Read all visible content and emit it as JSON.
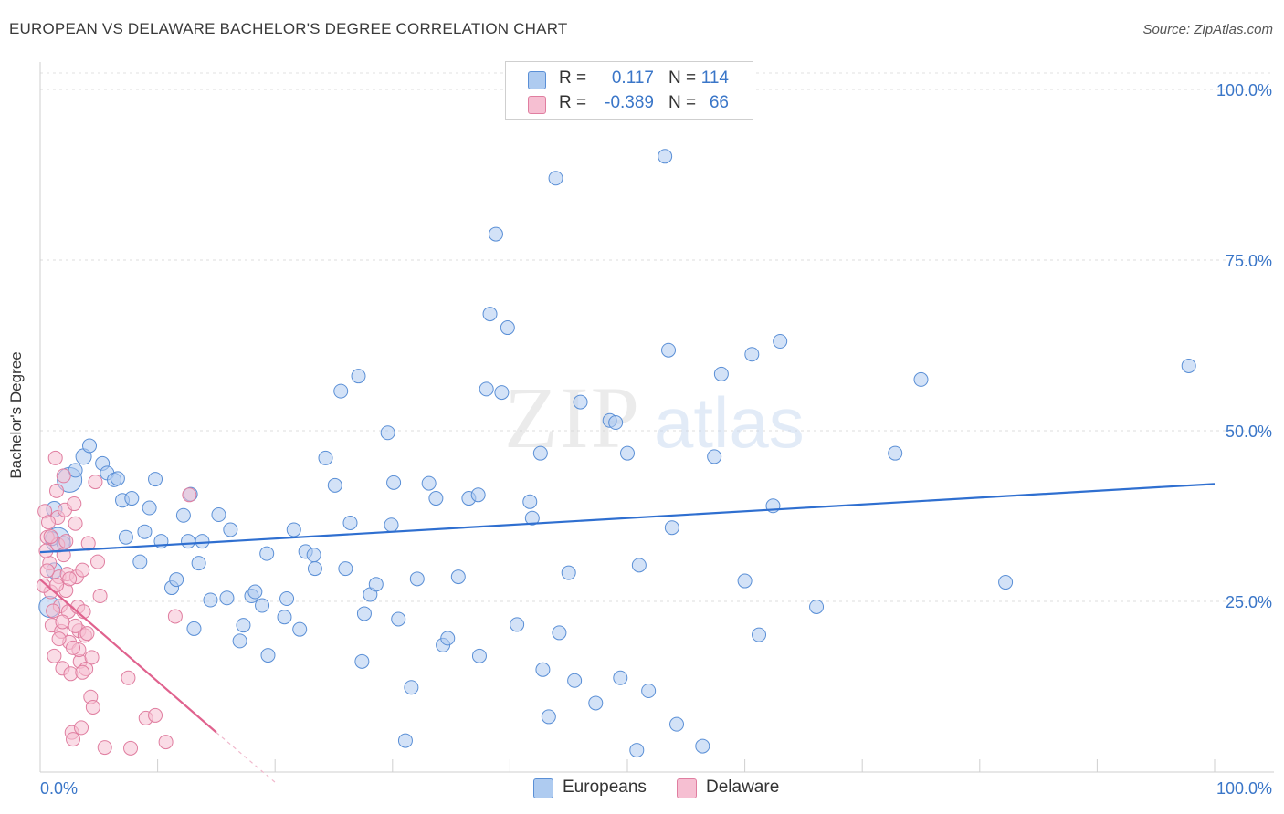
{
  "title": "EUROPEAN VS DELAWARE BACHELOR'S DEGREE CORRELATION CHART",
  "source": "Source: ZipAtlas.com",
  "watermark": {
    "zip": "ZIP",
    "atlas": "atlas"
  },
  "legend": {
    "rows": [
      {
        "r_label": "R =",
        "r_value": "0.117",
        "n_label": "N =",
        "n_value": "114",
        "color": "#aecbf0",
        "stroke": "#5a8fd6"
      },
      {
        "r_label": "R =",
        "r_value": "-0.389",
        "n_label": "N =",
        "n_value": "66",
        "color": "#f6bfd2",
        "stroke": "#e07ea0"
      }
    ]
  },
  "bottom_legend": [
    {
      "label": "Europeans",
      "color": "#aecbf0",
      "stroke": "#5a8fd6"
    },
    {
      "label": "Delaware",
      "color": "#f6bfd2",
      "stroke": "#e07ea0"
    }
  ],
  "chart_data": {
    "type": "scatter",
    "title": "EUROPEAN VS DELAWARE BACHELOR'S DEGREE CORRELATION CHART",
    "xlabel": "",
    "ylabel": "Bachelor's Degree",
    "xlim": [
      0,
      100
    ],
    "ylim": [
      0,
      100
    ],
    "x_tick_labels": [
      "0.0%",
      "100.0%"
    ],
    "y_tick_labels": [
      "25.0%",
      "50.0%",
      "75.0%",
      "100.0%"
    ],
    "y_ticks": [
      25,
      50,
      75,
      100
    ],
    "grid": true,
    "series": [
      {
        "name": "Europeans",
        "color": "#aecbf0",
        "stroke": "#5a8fd6",
        "trend": {
          "x": [
            0,
            100
          ],
          "y": [
            32.2,
            42.2
          ],
          "color": "#2f6fd0"
        },
        "points": [
          [
            0.8,
            24.2,
            22
          ],
          [
            1.2,
            38.5,
            16
          ],
          [
            1.5,
            34.0,
            26
          ],
          [
            1.2,
            29.5,
            16
          ],
          [
            2.5,
            42.8,
            26
          ],
          [
            3.7,
            46.2,
            16
          ],
          [
            4.2,
            47.8,
            14
          ],
          [
            5.3,
            45.2,
            14
          ],
          [
            5.7,
            43.8,
            14
          ],
          [
            6.3,
            42.8,
            14
          ],
          [
            3.0,
            44.2,
            14
          ],
          [
            6.6,
            43.0,
            14
          ],
          [
            7.0,
            39.8,
            14
          ],
          [
            7.8,
            40.1,
            14
          ],
          [
            9.3,
            38.7,
            14
          ],
          [
            9.8,
            42.9,
            14
          ],
          [
            7.3,
            34.4,
            14
          ],
          [
            8.9,
            35.2,
            14
          ],
          [
            10.3,
            33.8,
            14
          ],
          [
            12.2,
            37.6,
            14
          ],
          [
            12.6,
            33.8,
            14
          ],
          [
            12.8,
            40.7,
            14
          ],
          [
            13.8,
            33.8,
            14
          ],
          [
            15.2,
            37.7,
            14
          ],
          [
            16.2,
            35.5,
            14
          ],
          [
            11.2,
            27.0,
            14
          ],
          [
            11.6,
            28.2,
            14
          ],
          [
            8.5,
            30.8,
            14
          ],
          [
            13.5,
            30.6,
            14
          ],
          [
            14.5,
            25.2,
            14
          ],
          [
            15.9,
            25.5,
            14
          ],
          [
            13.1,
            21.0,
            14
          ],
          [
            17.3,
            21.5,
            14
          ],
          [
            17.0,
            19.2,
            14
          ],
          [
            18.0,
            25.8,
            14
          ],
          [
            18.3,
            26.4,
            14
          ],
          [
            18.9,
            24.4,
            14
          ],
          [
            19.3,
            32.0,
            14
          ],
          [
            19.4,
            17.1,
            14
          ],
          [
            20.8,
            22.7,
            14
          ],
          [
            21.0,
            25.4,
            14
          ],
          [
            21.6,
            35.5,
            14
          ],
          [
            22.1,
            20.9,
            14
          ],
          [
            22.6,
            32.3,
            14
          ],
          [
            23.3,
            31.8,
            14
          ],
          [
            23.4,
            29.8,
            14
          ],
          [
            24.3,
            46.0,
            14
          ],
          [
            25.1,
            42.0,
            14
          ],
          [
            25.6,
            55.8,
            14
          ],
          [
            26.4,
            36.5,
            14
          ],
          [
            26.0,
            29.8,
            14
          ],
          [
            27.1,
            58.0,
            14
          ],
          [
            27.4,
            16.2,
            14
          ],
          [
            27.6,
            23.2,
            14
          ],
          [
            28.1,
            26.0,
            14
          ],
          [
            28.6,
            27.5,
            14
          ],
          [
            29.6,
            49.7,
            14
          ],
          [
            29.9,
            36.2,
            14
          ],
          [
            30.1,
            42.4,
            14
          ],
          [
            30.5,
            22.4,
            14
          ],
          [
            31.1,
            4.6,
            14
          ],
          [
            31.6,
            12.4,
            14
          ],
          [
            32.1,
            28.3,
            14
          ],
          [
            33.1,
            42.3,
            14
          ],
          [
            33.7,
            40.1,
            14
          ],
          [
            34.3,
            18.6,
            14
          ],
          [
            34.7,
            19.6,
            14
          ],
          [
            35.6,
            28.6,
            14
          ],
          [
            36.5,
            40.1,
            14
          ],
          [
            37.3,
            40.6,
            14
          ],
          [
            37.4,
            17.0,
            14
          ],
          [
            38.0,
            56.1,
            14
          ],
          [
            38.3,
            67.1,
            14
          ],
          [
            38.8,
            78.8,
            14
          ],
          [
            39.3,
            55.6,
            14
          ],
          [
            39.8,
            65.1,
            14
          ],
          [
            40.6,
            21.6,
            14
          ],
          [
            41.7,
            39.6,
            14
          ],
          [
            41.9,
            37.2,
            14
          ],
          [
            42.6,
            46.7,
            14
          ],
          [
            42.8,
            15.0,
            14
          ],
          [
            43.3,
            8.1,
            14
          ],
          [
            43.9,
            87.0,
            14
          ],
          [
            44.2,
            20.4,
            14
          ],
          [
            45.0,
            29.2,
            14
          ],
          [
            45.5,
            13.4,
            14
          ],
          [
            46.0,
            54.2,
            14
          ],
          [
            47.3,
            10.1,
            14
          ],
          [
            48.5,
            51.5,
            14
          ],
          [
            49.0,
            51.2,
            14
          ],
          [
            49.4,
            13.8,
            14
          ],
          [
            50.0,
            46.7,
            14
          ],
          [
            50.8,
            3.2,
            14
          ],
          [
            51.0,
            30.3,
            14
          ],
          [
            51.8,
            11.9,
            14
          ],
          [
            53.2,
            90.2,
            14
          ],
          [
            53.5,
            61.8,
            14
          ],
          [
            53.8,
            35.8,
            14
          ],
          [
            54.2,
            7.0,
            14
          ],
          [
            56.4,
            3.8,
            14
          ],
          [
            57.4,
            46.2,
            14
          ],
          [
            58.0,
            58.3,
            14
          ],
          [
            60.0,
            28.0,
            14
          ],
          [
            60.6,
            61.2,
            14
          ],
          [
            61.2,
            20.1,
            14
          ],
          [
            62.4,
            39.0,
            14
          ],
          [
            63.0,
            63.1,
            14
          ],
          [
            66.1,
            24.2,
            14
          ],
          [
            72.8,
            46.7,
            14
          ],
          [
            75.0,
            57.5,
            14
          ],
          [
            82.2,
            27.8,
            14
          ],
          [
            97.8,
            59.5,
            14
          ],
          [
            1.0,
            34.2,
            14
          ],
          [
            2.0,
            33.5,
            14
          ]
        ]
      },
      {
        "name": "Delaware",
        "color": "#f6bfd2",
        "stroke": "#e07ea0",
        "trend": {
          "x": [
            0,
            15
          ],
          "y": [
            28.2,
            5.8
          ],
          "dash_x_end": 20,
          "dash_y_end": -1.5,
          "color": "#e0628e"
        },
        "points": [
          [
            0.4,
            38.2,
            14
          ],
          [
            0.6,
            34.4,
            14
          ],
          [
            0.8,
            30.6,
            14
          ],
          [
            0.9,
            26.4,
            14
          ],
          [
            1.0,
            21.5,
            14
          ],
          [
            1.2,
            17.0,
            14
          ],
          [
            1.3,
            46.0,
            14
          ],
          [
            1.4,
            41.2,
            14
          ],
          [
            1.5,
            37.3,
            14
          ],
          [
            1.5,
            33.3,
            14
          ],
          [
            1.6,
            28.6,
            14
          ],
          [
            1.7,
            24.3,
            14
          ],
          [
            1.8,
            20.6,
            14
          ],
          [
            1.9,
            15.2,
            14
          ],
          [
            2.0,
            43.4,
            14
          ],
          [
            2.1,
            38.4,
            14
          ],
          [
            2.2,
            33.8,
            14
          ],
          [
            2.3,
            29.0,
            14
          ],
          [
            2.4,
            23.5,
            14
          ],
          [
            2.5,
            19.0,
            14
          ],
          [
            2.6,
            14.4,
            14
          ],
          [
            2.7,
            5.8,
            14
          ],
          [
            2.8,
            4.8,
            14
          ],
          [
            2.9,
            39.3,
            14
          ],
          [
            3.0,
            36.4,
            14
          ],
          [
            3.1,
            28.6,
            14
          ],
          [
            3.2,
            24.2,
            14
          ],
          [
            3.3,
            20.7,
            14
          ],
          [
            3.4,
            16.2,
            14
          ],
          [
            3.5,
            6.5,
            14
          ],
          [
            3.6,
            29.6,
            14
          ],
          [
            3.7,
            23.5,
            14
          ],
          [
            3.8,
            20.0,
            14
          ],
          [
            3.9,
            15.1,
            14
          ],
          [
            4.1,
            33.5,
            14
          ],
          [
            4.3,
            11.0,
            14
          ],
          [
            4.5,
            9.5,
            14
          ],
          [
            4.7,
            42.5,
            14
          ],
          [
            4.9,
            30.8,
            14
          ],
          [
            5.1,
            25.8,
            14
          ],
          [
            5.5,
            3.6,
            14
          ],
          [
            7.5,
            13.8,
            14
          ],
          [
            7.7,
            3.5,
            14
          ],
          [
            9.0,
            7.9,
            14
          ],
          [
            9.8,
            8.3,
            14
          ],
          [
            10.7,
            4.4,
            14
          ],
          [
            11.5,
            22.8,
            14
          ],
          [
            12.7,
            40.6,
            14
          ],
          [
            0.3,
            27.3,
            14
          ],
          [
            0.5,
            32.4,
            14
          ],
          [
            0.7,
            36.6,
            14
          ],
          [
            1.1,
            23.6,
            14
          ],
          [
            2.2,
            26.6,
            14
          ],
          [
            3.0,
            21.4,
            14
          ],
          [
            4.0,
            20.3,
            14
          ],
          [
            1.4,
            27.4,
            14
          ],
          [
            0.6,
            29.5,
            14
          ],
          [
            2.0,
            31.8,
            14
          ],
          [
            2.5,
            28.3,
            14
          ],
          [
            3.3,
            17.9,
            14
          ],
          [
            1.9,
            22.0,
            14
          ],
          [
            0.9,
            34.5,
            14
          ],
          [
            1.6,
            19.5,
            14
          ],
          [
            2.8,
            18.2,
            14
          ],
          [
            3.6,
            14.6,
            14
          ],
          [
            4.4,
            16.8,
            14
          ]
        ]
      }
    ]
  }
}
